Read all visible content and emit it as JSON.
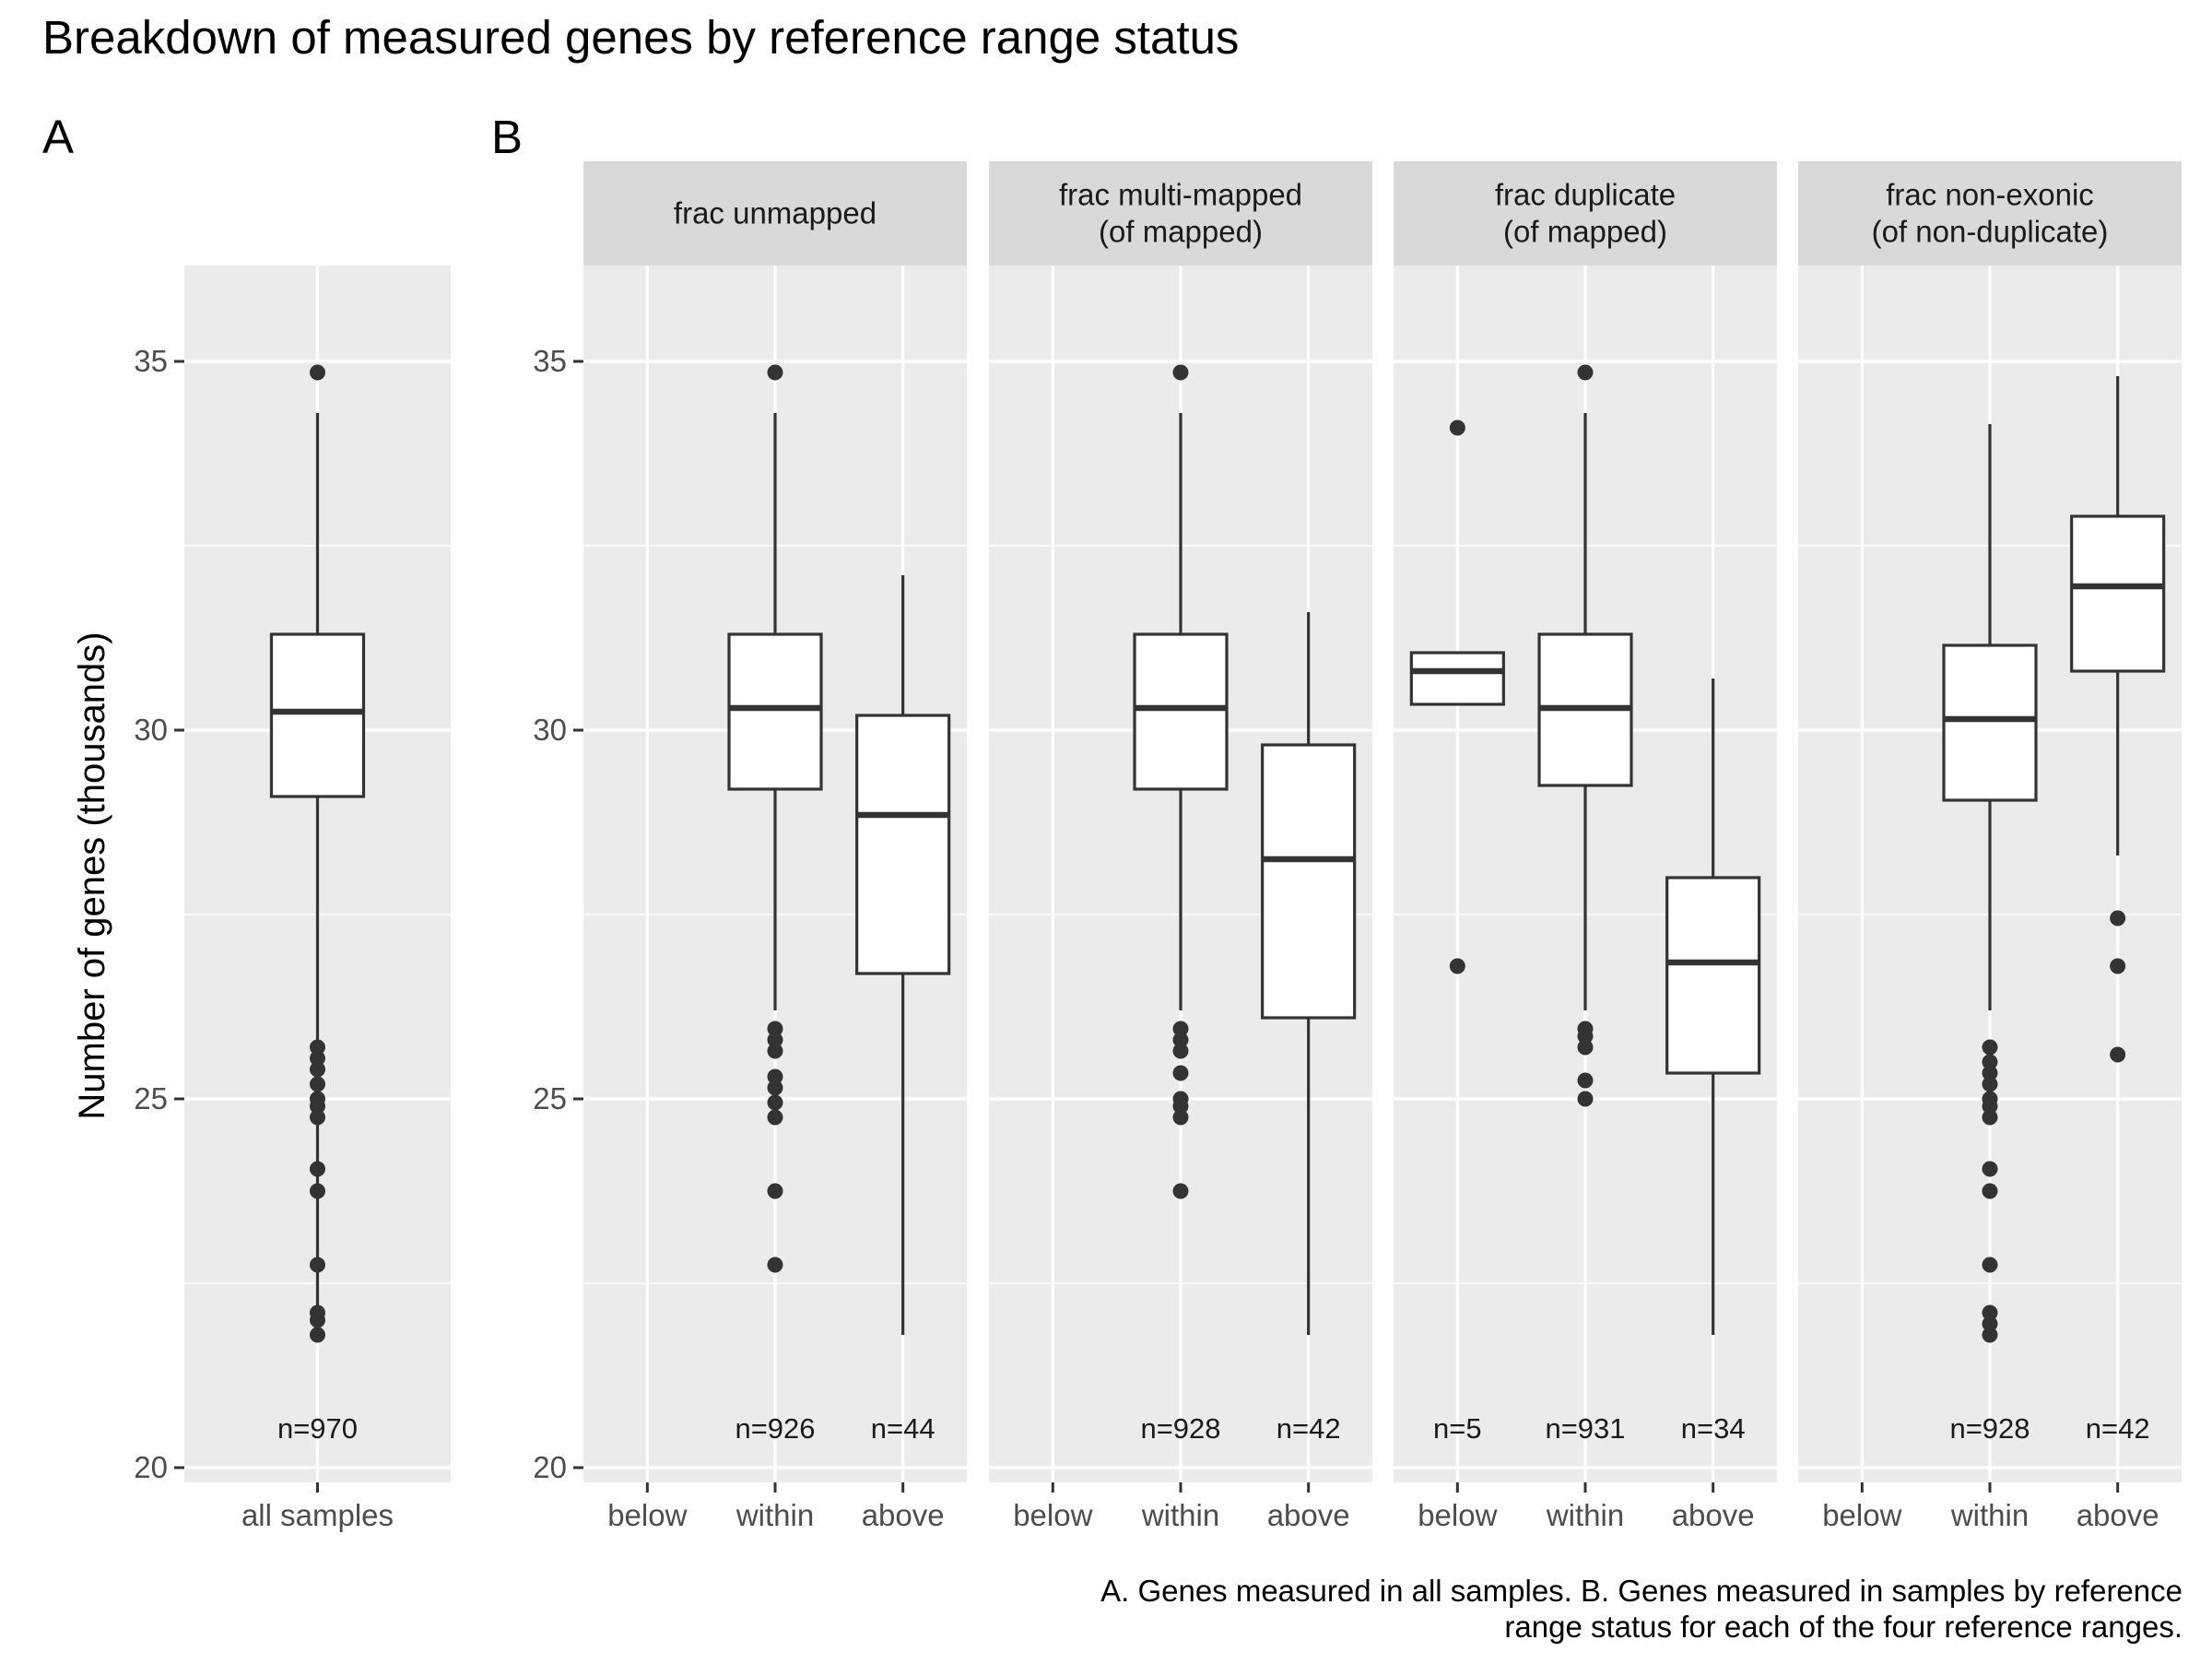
{
  "title": "Breakdown of measured genes by reference range status",
  "panel_tags": {
    "a": "A",
    "b": "B"
  },
  "y_axis_title": "Number of genes (thousands)",
  "caption": [
    "A. Genes measured in all samples. B. Genes measured in samples by reference",
    "range status for each of the four reference ranges."
  ],
  "chart_data": [
    {
      "type": "boxplot",
      "panel": "A",
      "ylabel": "Number of genes (thousands)",
      "ylim": [
        19.8,
        36.3
      ],
      "yticks": [
        20,
        25,
        30,
        35
      ],
      "grid": true,
      "categories": [
        "all samples"
      ],
      "boxes": [
        {
          "category": "all samples",
          "lower_whisker": 21.8,
          "q1": 29.1,
          "median": 30.25,
          "q3": 31.3,
          "upper_whisker": 34.3,
          "outliers": [
            34.85,
            25.7,
            25.55,
            25.4,
            25.2,
            25.0,
            24.9,
            24.75,
            24.05,
            23.75,
            22.75,
            22.1,
            22.0,
            21.8
          ],
          "n_label": "n=970"
        }
      ]
    },
    {
      "type": "boxplot",
      "panel": "B",
      "ylim": [
        19.8,
        36.3
      ],
      "yticks": [
        20,
        25,
        30,
        35
      ],
      "grid": true,
      "categories": [
        "below",
        "within",
        "above"
      ],
      "facets": [
        {
          "strip": [
            "frac unmapped"
          ],
          "boxes": [
            {
              "category": "within",
              "lower_whisker": 26.2,
              "q1": 29.2,
              "median": 30.3,
              "q3": 31.3,
              "upper_whisker": 34.3,
              "outliers": [
                34.85,
                25.95,
                25.8,
                25.65,
                25.3,
                25.15,
                24.95,
                24.75,
                23.75,
                22.75
              ],
              "n_label": "n=926"
            },
            {
              "category": "above",
              "lower_whisker": 21.8,
              "q1": 26.7,
              "median": 28.85,
              "q3": 30.2,
              "upper_whisker": 32.1,
              "outliers": [],
              "n_label": "n=44"
            }
          ]
        },
        {
          "strip": [
            "frac multi-mapped",
            "(of mapped)"
          ],
          "boxes": [
            {
              "category": "within",
              "lower_whisker": 26.2,
              "q1": 29.2,
              "median": 30.3,
              "q3": 31.3,
              "upper_whisker": 34.3,
              "outliers": [
                34.85,
                25.95,
                25.8,
                25.65,
                25.35,
                25.0,
                24.9,
                24.75,
                23.75
              ],
              "n_label": "n=928"
            },
            {
              "category": "above",
              "lower_whisker": 21.8,
              "q1": 26.1,
              "median": 28.25,
              "q3": 29.8,
              "upper_whisker": 31.6,
              "outliers": [],
              "n_label": "n=42"
            }
          ]
        },
        {
          "strip": [
            "frac duplicate",
            "(of mapped)"
          ],
          "boxes": [
            {
              "category": "below",
              "lower_whisker": 30.35,
              "q1": 30.35,
              "median": 30.8,
              "q3": 31.05,
              "upper_whisker": 31.05,
              "outliers": [
                34.1,
                26.8
              ],
              "n_label": "n=5"
            },
            {
              "category": "within",
              "lower_whisker": 26.2,
              "q1": 29.25,
              "median": 30.3,
              "q3": 31.3,
              "upper_whisker": 34.3,
              "outliers": [
                34.85,
                25.95,
                25.85,
                25.7,
                25.25,
                25.0
              ],
              "n_label": "n=931"
            },
            {
              "category": "above",
              "lower_whisker": 21.8,
              "q1": 25.35,
              "median": 26.85,
              "q3": 28.0,
              "upper_whisker": 30.7,
              "outliers": [],
              "n_label": "n=34"
            }
          ]
        },
        {
          "strip": [
            "frac non-exonic",
            "(of non-duplicate)"
          ],
          "boxes": [
            {
              "category": "within",
              "lower_whisker": 26.2,
              "q1": 29.05,
              "median": 30.15,
              "q3": 31.15,
              "upper_whisker": 34.15,
              "outliers": [
                25.7,
                25.5,
                25.35,
                25.2,
                25.0,
                24.9,
                24.75,
                24.05,
                23.75,
                22.75,
                22.1,
                21.95,
                21.8
              ],
              "n_label": "n=928"
            },
            {
              "category": "above",
              "lower_whisker": 28.3,
              "q1": 30.8,
              "median": 31.95,
              "q3": 32.9,
              "upper_whisker": 34.8,
              "outliers": [
                27.45,
                26.8,
                25.6
              ],
              "n_label": "n=42"
            }
          ]
        }
      ]
    }
  ]
}
